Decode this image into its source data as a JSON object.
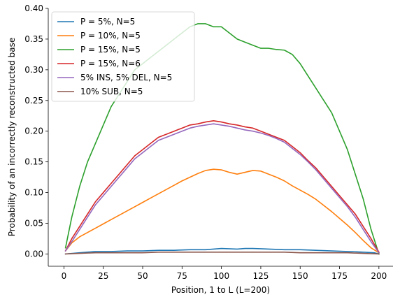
{
  "chart_data": {
    "type": "line",
    "title": "",
    "xlabel": "Position, 1 to L (L=200)",
    "ylabel": "Probability of an incorrectly reconstructed base",
    "xlim": [
      -9.95,
      208.95
    ],
    "ylim": [
      -0.02,
      0.4
    ],
    "xticks": [
      0,
      25,
      50,
      75,
      100,
      125,
      150,
      175,
      200
    ],
    "yticks": [
      0.0,
      0.05,
      0.1,
      0.15,
      0.2,
      0.25,
      0.3,
      0.35,
      0.4
    ],
    "xtick_labels": [
      "0",
      "25",
      "50",
      "75",
      "100",
      "125",
      "150",
      "175",
      "200"
    ],
    "ytick_labels": [
      "0.00",
      "0.05",
      "0.10",
      "0.15",
      "0.20",
      "0.25",
      "0.30",
      "0.35",
      "0.40"
    ],
    "grid": false,
    "legend_position": "top-left",
    "series": [
      {
        "name": "P = 5%, N=5",
        "color": "#1f77b4",
        "x": [
          1,
          10,
          20,
          30,
          40,
          50,
          60,
          70,
          80,
          90,
          95,
          100,
          110,
          115,
          120,
          130,
          140,
          150,
          160,
          170,
          180,
          190,
          197,
          200
        ],
        "y": [
          0.0,
          0.002,
          0.004,
          0.004,
          0.005,
          0.005,
          0.006,
          0.006,
          0.007,
          0.007,
          0.008,
          0.009,
          0.008,
          0.009,
          0.009,
          0.008,
          0.007,
          0.007,
          0.006,
          0.005,
          0.004,
          0.003,
          0.002,
          0.0
        ]
      },
      {
        "name": "P = 10%, N=5",
        "color": "#ff7f0e",
        "x": [
          1,
          5,
          10,
          15,
          20,
          25,
          30,
          35,
          40,
          45,
          50,
          55,
          60,
          65,
          70,
          75,
          80,
          85,
          90,
          95,
          100,
          105,
          110,
          115,
          120,
          125,
          130,
          135,
          140,
          145,
          150,
          155,
          160,
          165,
          170,
          175,
          180,
          185,
          190,
          195,
          200
        ],
        "y": [
          0.005,
          0.018,
          0.028,
          0.035,
          0.042,
          0.049,
          0.056,
          0.063,
          0.07,
          0.077,
          0.084,
          0.091,
          0.098,
          0.105,
          0.112,
          0.119,
          0.125,
          0.131,
          0.136,
          0.138,
          0.137,
          0.133,
          0.13,
          0.133,
          0.136,
          0.135,
          0.13,
          0.125,
          0.119,
          0.111,
          0.104,
          0.097,
          0.089,
          0.079,
          0.069,
          0.058,
          0.047,
          0.035,
          0.022,
          0.01,
          0.002
        ]
      },
      {
        "name": "P = 15%, N=5",
        "color": "#2ca02c",
        "x": [
          1,
          5,
          10,
          15,
          20,
          25,
          30,
          35,
          40,
          45,
          50,
          55,
          60,
          65,
          70,
          75,
          80,
          85,
          90,
          95,
          100,
          105,
          110,
          115,
          120,
          125,
          130,
          135,
          140,
          145,
          150,
          155,
          160,
          165,
          170,
          175,
          180,
          185,
          190,
          195,
          200
        ],
        "y": [
          0.01,
          0.06,
          0.11,
          0.15,
          0.18,
          0.21,
          0.24,
          0.26,
          0.28,
          0.3,
          0.31,
          0.32,
          0.33,
          0.34,
          0.35,
          0.36,
          0.37,
          0.375,
          0.375,
          0.37,
          0.37,
          0.36,
          0.35,
          0.345,
          0.34,
          0.335,
          0.335,
          0.333,
          0.332,
          0.325,
          0.31,
          0.29,
          0.27,
          0.25,
          0.23,
          0.2,
          0.17,
          0.13,
          0.09,
          0.04,
          0.0
        ]
      },
      {
        "name": "P = 15%, N=6",
        "color": "#d62728",
        "x": [
          1,
          5,
          10,
          15,
          20,
          25,
          30,
          35,
          40,
          45,
          50,
          55,
          60,
          65,
          70,
          75,
          80,
          85,
          90,
          95,
          100,
          105,
          110,
          115,
          120,
          125,
          130,
          135,
          140,
          145,
          150,
          155,
          160,
          165,
          170,
          175,
          180,
          185,
          190,
          195,
          200
        ],
        "y": [
          0.005,
          0.025,
          0.045,
          0.065,
          0.085,
          0.1,
          0.115,
          0.13,
          0.145,
          0.16,
          0.17,
          0.18,
          0.19,
          0.195,
          0.2,
          0.205,
          0.21,
          0.212,
          0.215,
          0.217,
          0.215,
          0.212,
          0.21,
          0.207,
          0.205,
          0.2,
          0.195,
          0.19,
          0.185,
          0.175,
          0.165,
          0.152,
          0.14,
          0.125,
          0.11,
          0.095,
          0.08,
          0.065,
          0.045,
          0.025,
          0.003
        ]
      },
      {
        "name": "5% INS, 5% DEL, N=5",
        "color": "#9467bd",
        "x": [
          1,
          5,
          10,
          15,
          20,
          25,
          30,
          35,
          40,
          45,
          50,
          55,
          60,
          65,
          70,
          75,
          80,
          85,
          90,
          95,
          100,
          105,
          110,
          115,
          120,
          125,
          130,
          135,
          140,
          145,
          150,
          155,
          160,
          165,
          170,
          175,
          180,
          185,
          190,
          195,
          200
        ],
        "y": [
          0.005,
          0.02,
          0.04,
          0.06,
          0.08,
          0.095,
          0.11,
          0.125,
          0.14,
          0.155,
          0.165,
          0.175,
          0.185,
          0.19,
          0.195,
          0.2,
          0.205,
          0.208,
          0.21,
          0.212,
          0.21,
          0.208,
          0.205,
          0.202,
          0.2,
          0.197,
          0.193,
          0.188,
          0.182,
          0.172,
          0.162,
          0.15,
          0.137,
          0.122,
          0.107,
          0.092,
          0.077,
          0.06,
          0.04,
          0.02,
          0.002
        ]
      },
      {
        "name": "10% SUB, N=5",
        "color": "#8c564b",
        "x": [
          1,
          10,
          20,
          30,
          40,
          50,
          60,
          70,
          80,
          90,
          100,
          110,
          120,
          130,
          140,
          150,
          160,
          170,
          180,
          190,
          200
        ],
        "y": [
          0.0,
          0.001,
          0.002,
          0.002,
          0.002,
          0.002,
          0.003,
          0.003,
          0.003,
          0.003,
          0.003,
          0.003,
          0.003,
          0.003,
          0.003,
          0.002,
          0.002,
          0.002,
          0.002,
          0.001,
          0.0
        ]
      }
    ]
  }
}
